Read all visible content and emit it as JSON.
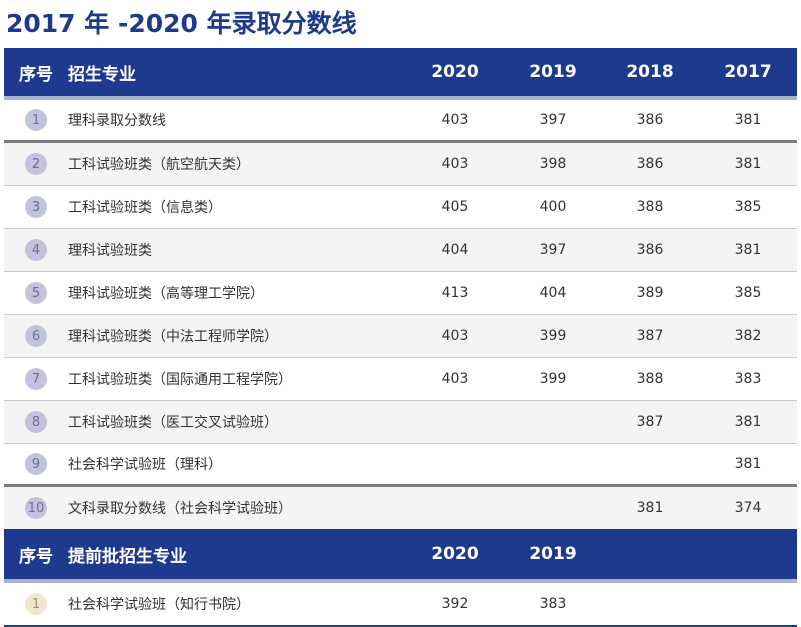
{
  "page_title": "2017 年 -2020 年录取分数线",
  "header": {
    "no": "序号",
    "major": "招生专业",
    "years": [
      "2020",
      "2019",
      "2018",
      "2017"
    ]
  },
  "rows": [
    {
      "no": "1",
      "name": "理科录取分数线",
      "v": [
        "403",
        "397",
        "386",
        "381"
      ]
    },
    {
      "no": "2",
      "name": "工科试验班类（航空航天类）",
      "v": [
        "403",
        "398",
        "386",
        "381"
      ]
    },
    {
      "no": "3",
      "name": "工科试验班类（信息类）",
      "v": [
        "405",
        "400",
        "388",
        "385"
      ]
    },
    {
      "no": "4",
      "name": "理科试验班类",
      "v": [
        "404",
        "397",
        "386",
        "381"
      ]
    },
    {
      "no": "5",
      "name": "理科试验班类（高等理工学院）",
      "v": [
        "413",
        "404",
        "389",
        "385"
      ]
    },
    {
      "no": "6",
      "name": "理科试验班类（中法工程师学院）",
      "v": [
        "403",
        "399",
        "387",
        "382"
      ]
    },
    {
      "no": "7",
      "name": "工科试验班类（国际通用工程学院）",
      "v": [
        "403",
        "399",
        "388",
        "383"
      ]
    },
    {
      "no": "8",
      "name": "工科试验班类（医工交叉试验班）",
      "v": [
        "",
        "",
        "387",
        "381"
      ]
    },
    {
      "no": "9",
      "name": "社会科学试验班（理科）",
      "v": [
        "",
        "",
        "",
        "381"
      ]
    },
    {
      "no": "10",
      "name": "文科录取分数线（社会科学试验班）",
      "v": [
        "",
        "",
        "381",
        "374"
      ]
    }
  ],
  "header2": {
    "no": "序号",
    "major": "提前批招生专业",
    "years": [
      "2020",
      "2019"
    ]
  },
  "rows2": [
    {
      "no": "1",
      "name": "社会科学试验班（知行书院）",
      "v": [
        "392",
        "383"
      ]
    }
  ],
  "colors": {
    "header_bg": "#1e3a8f",
    "title": "#1f3a8a",
    "circle": "#c2c3dc",
    "circle_beige": "#f1e6cf"
  }
}
